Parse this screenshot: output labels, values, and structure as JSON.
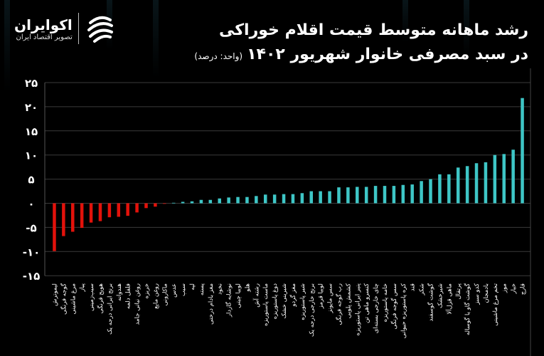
{
  "header": {
    "title_line1": "رشد ماهانه متوسط قیمت اقلام خوراکی",
    "title_line2": "در سبد مصرفی خانوار شهریور ۱۴۰۲",
    "unit": "(واحد: درصد)"
  },
  "logo": {
    "brand": "اکوایران",
    "tagline": "تصویر اقتصاد ایران"
  },
  "colors": {
    "negative": "#e3120b",
    "positive": "#3ec6c6",
    "background": "#000000",
    "grid": "#3a3a3a"
  },
  "chart_data": {
    "type": "bar",
    "title": "رشد ماهانه متوسط قیمت اقلام خوراکی در سبد مصرفی خانوار شهریور ۱۴۰۲",
    "ylabel": "",
    "xlabel": "",
    "ylim": [
      -15,
      25
    ],
    "yticks": [
      25,
      20,
      15,
      10,
      5,
      0,
      -5,
      -10,
      -15
    ],
    "ytick_labels": [
      "۲۵",
      "۲۰",
      "۱۵",
      "۱۰",
      "۵",
      "۰",
      "-۵",
      "-۱۰",
      "-۱۵"
    ],
    "grid": true,
    "categories": [
      "لیموترش",
      "گوجه فرنگی",
      "مرغ ماشینی",
      "پیاز",
      "سیب‌زمینی",
      "هویج فرنگی",
      "برنج ایرانی درجه یک",
      "هندوانه",
      "فلفل دلمه",
      "روغن نباتی جامد",
      "خربزه",
      "روغن مایع",
      "ماکارونی",
      "عدس",
      "سیب",
      "لپه",
      "پسته",
      "مغز بادام درختی",
      "نخود",
      "نوشابه گازدار",
      "لوبیا چیتی",
      "هلو",
      "رشته آش",
      "ماست پاستوریزه",
      "دوغ پاستوریزه",
      "شیرینی خشک",
      "مغز گردو",
      "شیر پاستوریزه",
      "برنج خارجی درجه یک",
      "لوبیا قرمز",
      "سس مایونز",
      "رب گوجه فرنگی",
      "کشمش پلویی",
      "پنیر ایرانی پاستوریزه",
      "کنسرو ماهی تن",
      "چای خارجی بسته‌ای",
      "خامه پاستوریزه",
      "سس گوجه فرنگی",
      "کره پاستوریزه حیوانی",
      "قند",
      "شکر",
      "گوشت گوسفند",
      "شیرخشک",
      "ماهی قزل‌آلا",
      "پرتقال",
      "گوشت گاو یا گوساله",
      "کدو سبز",
      "بادمجان",
      "تخم مرغ ماشینی",
      "موز",
      "خیار",
      "قارچ"
    ],
    "values": [
      -9.9,
      -6.8,
      -5.9,
      -5.1,
      -4.0,
      -3.7,
      -2.9,
      -2.8,
      -2.6,
      -1.9,
      -1.0,
      -0.7,
      -0.1,
      0.1,
      0.3,
      0.4,
      0.7,
      0.7,
      1.0,
      1.2,
      1.3,
      1.3,
      1.5,
      1.8,
      1.8,
      1.9,
      1.9,
      2.1,
      2.5,
      2.5,
      2.5,
      3.3,
      3.3,
      3.4,
      3.4,
      3.6,
      3.6,
      3.6,
      3.8,
      3.9,
      4.6,
      5.0,
      6.0,
      6.0,
      7.4,
      7.7,
      8.3,
      8.5,
      10.0,
      10.2,
      11.1,
      21.8
    ]
  }
}
